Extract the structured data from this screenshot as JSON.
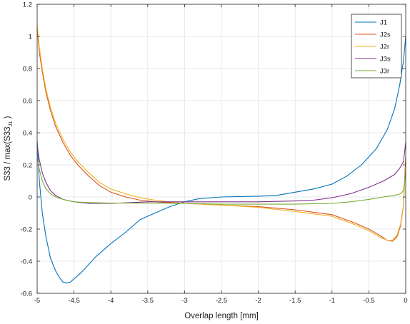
{
  "chart_data": {
    "type": "line",
    "title": "",
    "xlabel": "Overlap length [mm]",
    "ylabel_main": "S33 / max(S33",
    "ylabel_sub": "J1",
    "ylabel_tail": " )",
    "xlim": [
      -5,
      0
    ],
    "ylim": [
      -0.6,
      1.2
    ],
    "xticks": [
      -5,
      -4.5,
      -4,
      -3.5,
      -3,
      -2.5,
      -2,
      -1.5,
      -1,
      -0.5,
      0
    ],
    "xtick_labels": [
      "-5",
      "-4.5",
      "-4",
      "-3.5",
      "-3",
      "-2.5",
      "-2",
      "-1.5",
      "-1",
      "-0.5",
      "0"
    ],
    "yticks": [
      -0.6,
      -0.4,
      -0.2,
      0,
      0.2,
      0.4,
      0.6,
      0.8,
      1,
      1.2
    ],
    "ytick_labels": [
      "-0.6",
      "-0.4",
      "-0.2",
      "0",
      "0.2",
      "0.4",
      "0.6",
      "0.8",
      "1",
      "1.2"
    ],
    "grid": true,
    "legend_position": "top-right",
    "series": [
      {
        "name": "J1",
        "color": "#0072BD",
        "points": [
          [
            -5,
            0.35
          ],
          [
            -4.97,
            0.1
          ],
          [
            -4.93,
            -0.1
          ],
          [
            -4.88,
            -0.25
          ],
          [
            -4.82,
            -0.38
          ],
          [
            -4.75,
            -0.46
          ],
          [
            -4.7,
            -0.5
          ],
          [
            -4.65,
            -0.53
          ],
          [
            -4.6,
            -0.535
          ],
          [
            -4.55,
            -0.53
          ],
          [
            -4.5,
            -0.51
          ],
          [
            -4.4,
            -0.47
          ],
          [
            -4.3,
            -0.42
          ],
          [
            -4.2,
            -0.37
          ],
          [
            -4.1,
            -0.33
          ],
          [
            -4.0,
            -0.29
          ],
          [
            -3.8,
            -0.22
          ],
          [
            -3.6,
            -0.14
          ],
          [
            -3.4,
            -0.1
          ],
          [
            -3.2,
            -0.06
          ],
          [
            -3.0,
            -0.03
          ],
          [
            -2.8,
            -0.01
          ],
          [
            -2.5,
            0.0
          ],
          [
            -2.0,
            0.005
          ],
          [
            -1.75,
            0.01
          ],
          [
            -1.5,
            0.03
          ],
          [
            -1.25,
            0.05
          ],
          [
            -1.0,
            0.08
          ],
          [
            -0.8,
            0.13
          ],
          [
            -0.6,
            0.2
          ],
          [
            -0.4,
            0.3
          ],
          [
            -0.25,
            0.42
          ],
          [
            -0.15,
            0.55
          ],
          [
            -0.08,
            0.7
          ],
          [
            -0.03,
            0.85
          ],
          [
            0,
            1.0
          ]
        ]
      },
      {
        "name": "J2s",
        "color": "#D95319",
        "points": [
          [
            -5,
            1.05
          ],
          [
            -4.97,
            0.9
          ],
          [
            -4.93,
            0.78
          ],
          [
            -4.88,
            0.65
          ],
          [
            -4.82,
            0.54
          ],
          [
            -4.75,
            0.44
          ],
          [
            -4.65,
            0.34
          ],
          [
            -4.55,
            0.26
          ],
          [
            -4.45,
            0.2
          ],
          [
            -4.3,
            0.13
          ],
          [
            -4.15,
            0.07
          ],
          [
            -4.0,
            0.03
          ],
          [
            -3.8,
            0.0
          ],
          [
            -3.6,
            -0.02
          ],
          [
            -3.4,
            -0.03
          ],
          [
            -3.2,
            -0.035
          ],
          [
            -3.0,
            -0.04
          ],
          [
            -2.5,
            -0.05
          ],
          [
            -2.0,
            -0.06
          ],
          [
            -1.5,
            -0.08
          ],
          [
            -1.0,
            -0.11
          ],
          [
            -0.7,
            -0.16
          ],
          [
            -0.5,
            -0.2
          ],
          [
            -0.35,
            -0.24
          ],
          [
            -0.25,
            -0.27
          ],
          [
            -0.18,
            -0.275
          ],
          [
            -0.12,
            -0.25
          ],
          [
            -0.07,
            -0.18
          ],
          [
            -0.03,
            -0.05
          ],
          [
            0,
            0.25
          ]
        ]
      },
      {
        "name": "J2r",
        "color": "#EDB120",
        "points": [
          [
            -5,
            1.07
          ],
          [
            -4.97,
            0.93
          ],
          [
            -4.93,
            0.8
          ],
          [
            -4.88,
            0.67
          ],
          [
            -4.82,
            0.56
          ],
          [
            -4.75,
            0.46
          ],
          [
            -4.65,
            0.36
          ],
          [
            -4.55,
            0.28
          ],
          [
            -4.45,
            0.22
          ],
          [
            -4.3,
            0.15
          ],
          [
            -4.15,
            0.09
          ],
          [
            -4.0,
            0.05
          ],
          [
            -3.8,
            0.02
          ],
          [
            -3.6,
            -0.005
          ],
          [
            -3.4,
            -0.02
          ],
          [
            -3.2,
            -0.03
          ],
          [
            -3.0,
            -0.04
          ],
          [
            -2.5,
            -0.05
          ],
          [
            -2.0,
            -0.065
          ],
          [
            -1.5,
            -0.09
          ],
          [
            -1.0,
            -0.12
          ],
          [
            -0.7,
            -0.17
          ],
          [
            -0.5,
            -0.21
          ],
          [
            -0.35,
            -0.25
          ],
          [
            -0.25,
            -0.27
          ],
          [
            -0.18,
            -0.27
          ],
          [
            -0.12,
            -0.24
          ],
          [
            -0.07,
            -0.17
          ],
          [
            -0.03,
            -0.05
          ],
          [
            0,
            0.2
          ]
        ]
      },
      {
        "name": "J3s",
        "color": "#7E2F8E",
        "points": [
          [
            -5,
            0.32
          ],
          [
            -4.97,
            0.23
          ],
          [
            -4.93,
            0.15
          ],
          [
            -4.88,
            0.09
          ],
          [
            -4.82,
            0.04
          ],
          [
            -4.75,
            0.01
          ],
          [
            -4.65,
            -0.015
          ],
          [
            -4.5,
            -0.03
          ],
          [
            -4.3,
            -0.04
          ],
          [
            -4.0,
            -0.04
          ],
          [
            -3.5,
            -0.03
          ],
          [
            -3.0,
            -0.03
          ],
          [
            -2.5,
            -0.03
          ],
          [
            -2.0,
            -0.03
          ],
          [
            -1.5,
            -0.025
          ],
          [
            -1.25,
            -0.02
          ],
          [
            -1.0,
            -0.005
          ],
          [
            -0.75,
            0.02
          ],
          [
            -0.5,
            0.06
          ],
          [
            -0.3,
            0.1
          ],
          [
            -0.15,
            0.14
          ],
          [
            -0.08,
            0.18
          ],
          [
            -0.03,
            0.22
          ],
          [
            0,
            0.34
          ]
        ]
      },
      {
        "name": "J3r",
        "color": "#77AC30",
        "points": [
          [
            -5,
            0.25
          ],
          [
            -4.97,
            0.17
          ],
          [
            -4.93,
            0.1
          ],
          [
            -4.88,
            0.05
          ],
          [
            -4.82,
            0.02
          ],
          [
            -4.75,
            0.0
          ],
          [
            -4.65,
            -0.015
          ],
          [
            -4.5,
            -0.03
          ],
          [
            -4.3,
            -0.035
          ],
          [
            -4.0,
            -0.038
          ],
          [
            -3.5,
            -0.038
          ],
          [
            -3.0,
            -0.04
          ],
          [
            -2.5,
            -0.045
          ],
          [
            -2.0,
            -0.045
          ],
          [
            -1.5,
            -0.045
          ],
          [
            -1.0,
            -0.04
          ],
          [
            -0.75,
            -0.03
          ],
          [
            -0.5,
            -0.015
          ],
          [
            -0.3,
            0.0
          ],
          [
            -0.15,
            0.01
          ],
          [
            -0.07,
            0.02
          ],
          [
            -0.03,
            0.04
          ],
          [
            0,
            0.16
          ]
        ]
      }
    ]
  }
}
